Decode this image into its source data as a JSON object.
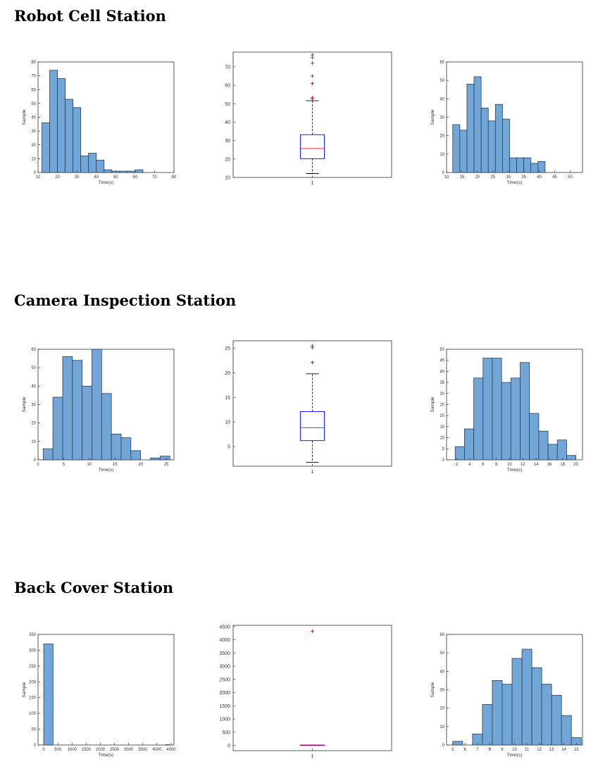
{
  "sections": [
    {
      "title": "Robot Cell Station"
    },
    {
      "title": "Camera Inspection Station"
    },
    {
      "title": "Back Cover Station"
    }
  ],
  "colors": {
    "bar": "#72a6d6",
    "bar_edge": "#2b3f57",
    "box": "#0000ff",
    "median": "#ff0000",
    "outlier": "#ff0000",
    "whisker": "#000000",
    "axes": "#333333"
  },
  "chart_data": [
    {
      "id": "robot-hist-raw",
      "type": "bar",
      "title": "",
      "xlabel": "Time(s)",
      "ylabel": "Sample",
      "xlim": [
        10,
        80
      ],
      "ylim": [
        0,
        80
      ],
      "xticks": [
        10,
        20,
        30,
        40,
        50,
        60,
        70,
        80
      ],
      "yticks": [
        0,
        10,
        20,
        30,
        40,
        50,
        60,
        70,
        80
      ],
      "bins": [
        [
          12,
          16,
          36
        ],
        [
          16,
          20,
          74
        ],
        [
          20,
          24,
          68
        ],
        [
          24,
          28,
          53
        ],
        [
          28,
          32,
          47
        ],
        [
          32,
          36,
          12
        ],
        [
          36,
          40,
          14
        ],
        [
          40,
          44,
          9
        ],
        [
          44,
          48,
          2
        ],
        [
          48,
          52,
          1
        ],
        [
          52,
          56,
          1
        ],
        [
          56,
          60,
          1
        ],
        [
          60,
          64,
          2
        ]
      ]
    },
    {
      "id": "robot-box",
      "type": "box",
      "title": "",
      "xticks": [
        "1"
      ],
      "ylim": [
        10,
        78
      ],
      "yticks": [
        10,
        20,
        30,
        40,
        50,
        60,
        70
      ],
      "q1": 20.2,
      "median": 25.7,
      "q3": 33.2,
      "whisker_low": 12.1,
      "whisker_high": 51.6,
      "outliers": [
        52.7,
        53.3,
        61,
        65,
        72,
        75,
        76.5
      ]
    },
    {
      "id": "robot-hist-clean",
      "type": "bar",
      "title": "",
      "xlabel": "Time(s)",
      "ylabel": "Sample",
      "xlim": [
        10,
        54
      ],
      "ylim": [
        0,
        60
      ],
      "xticks": [
        10,
        15,
        20,
        25,
        30,
        35,
        40,
        45,
        50
      ],
      "yticks": [
        0,
        10,
        20,
        30,
        40,
        50,
        60
      ],
      "bins": [
        [
          12,
          14.3,
          26
        ],
        [
          14.3,
          16.6,
          23
        ],
        [
          16.6,
          18.9,
          48
        ],
        [
          18.9,
          21.2,
          52
        ],
        [
          21.2,
          23.5,
          35
        ],
        [
          23.5,
          25.8,
          28
        ],
        [
          25.8,
          28.1,
          37
        ],
        [
          28.1,
          30.4,
          29
        ],
        [
          30.4,
          32.7,
          8
        ],
        [
          32.7,
          35.0,
          8
        ],
        [
          35.0,
          37.3,
          8
        ],
        [
          37.3,
          39.6,
          5
        ],
        [
          39.6,
          41.9,
          6
        ]
      ]
    },
    {
      "id": "camera-hist-raw",
      "type": "bar",
      "title": "",
      "xlabel": "Time(s)",
      "ylabel": "Sample",
      "xlim": [
        0,
        26.5
      ],
      "ylim": [
        0,
        60
      ],
      "xticks": [
        0,
        5,
        10,
        15,
        20,
        25
      ],
      "yticks": [
        0,
        10,
        20,
        30,
        40,
        50,
        60
      ],
      "bins": [
        [
          1,
          2.9,
          6
        ],
        [
          2.9,
          4.8,
          34
        ],
        [
          4.8,
          6.7,
          56
        ],
        [
          6.7,
          8.6,
          54
        ],
        [
          8.6,
          10.5,
          40
        ],
        [
          10.5,
          12.4,
          60
        ],
        [
          12.4,
          14.3,
          36
        ],
        [
          14.3,
          16.2,
          14
        ],
        [
          16.2,
          18.1,
          12
        ],
        [
          18.1,
          20.0,
          5
        ],
        [
          20.0,
          21.9,
          0
        ],
        [
          21.9,
          23.8,
          1
        ],
        [
          23.8,
          25.7,
          2
        ]
      ]
    },
    {
      "id": "camera-box",
      "type": "box",
      "title": "",
      "xticks": [
        "1"
      ],
      "ylim": [
        1,
        26.5
      ],
      "yticks": [
        5,
        10,
        15,
        20,
        25
      ],
      "q1": 6.2,
      "median": 8.8,
      "q3": 12.1,
      "whisker_low": 1.8,
      "whisker_high": 19.8,
      "outliers": [
        22.1,
        25.1,
        25.5
      ]
    },
    {
      "id": "camera-hist-clean",
      "type": "bar",
      "title": "",
      "xlabel": "Time(s)",
      "ylabel": "Sample",
      "xlim": [
        0.5,
        21
      ],
      "ylim": [
        0,
        50
      ],
      "xticks": [
        2,
        4,
        6,
        8,
        10,
        12,
        14,
        16,
        18,
        20
      ],
      "yticks": [
        0,
        5,
        10,
        15,
        20,
        25,
        30,
        35,
        40,
        45,
        50
      ],
      "bins": [
        [
          1.8,
          3.2,
          6
        ],
        [
          3.2,
          4.6,
          14
        ],
        [
          4.6,
          6.0,
          37
        ],
        [
          6.0,
          7.4,
          46
        ],
        [
          7.4,
          8.8,
          46
        ],
        [
          8.8,
          10.2,
          35
        ],
        [
          10.2,
          11.6,
          37
        ],
        [
          11.6,
          13.0,
          44
        ],
        [
          13.0,
          14.4,
          21
        ],
        [
          14.4,
          15.8,
          13
        ],
        [
          15.8,
          17.2,
          7
        ],
        [
          17.2,
          18.6,
          9
        ],
        [
          18.6,
          20.0,
          2
        ]
      ]
    },
    {
      "id": "back-hist-raw",
      "type": "bar",
      "title": "",
      "xlabel": "Time(s)",
      "ylabel": "Sample",
      "xlim": [
        -200,
        4600
      ],
      "ylim": [
        0,
        350
      ],
      "xticks": [
        0,
        500,
        1000,
        1500,
        2000,
        2500,
        3000,
        3500,
        4000,
        4500
      ],
      "yticks": [
        0,
        50,
        100,
        150,
        200,
        250,
        300,
        350
      ],
      "bins": [
        [
          0,
          330,
          320
        ],
        [
          4300,
          4450,
          1
        ]
      ]
    },
    {
      "id": "back-box",
      "type": "box",
      "title": "",
      "xticks": [
        "1"
      ],
      "ylim": [
        -200,
        4550
      ],
      "yticks": [
        0,
        500,
        1000,
        1500,
        2000,
        2500,
        3000,
        3500,
        4000,
        4500
      ],
      "q1": 8,
      "median": 10,
      "q3": 12,
      "whisker_low": 4,
      "whisker_high": 16,
      "outliers": [
        4330
      ]
    },
    {
      "id": "back-hist-clean",
      "type": "bar",
      "title": "",
      "xlabel": "Time(s)",
      "ylabel": "Sample",
      "xlim": [
        4.5,
        15.5
      ],
      "ylim": [
        0,
        60
      ],
      "xticks": [
        5,
        6,
        7,
        8,
        9,
        10,
        11,
        12,
        13,
        14,
        15
      ],
      "yticks": [
        0,
        10,
        20,
        30,
        40,
        50,
        60
      ],
      "bins": [
        [
          5.0,
          5.8,
          2
        ],
        [
          5.8,
          6.6,
          0
        ],
        [
          6.6,
          7.4,
          6
        ],
        [
          7.4,
          8.2,
          22
        ],
        [
          8.2,
          9.0,
          35
        ],
        [
          9.0,
          9.8,
          33
        ],
        [
          9.8,
          10.6,
          47
        ],
        [
          10.6,
          11.4,
          52
        ],
        [
          11.4,
          12.2,
          42
        ],
        [
          12.2,
          13.0,
          33
        ],
        [
          13.0,
          13.8,
          27
        ],
        [
          13.8,
          14.6,
          16
        ],
        [
          14.6,
          15.4,
          4
        ]
      ]
    }
  ]
}
